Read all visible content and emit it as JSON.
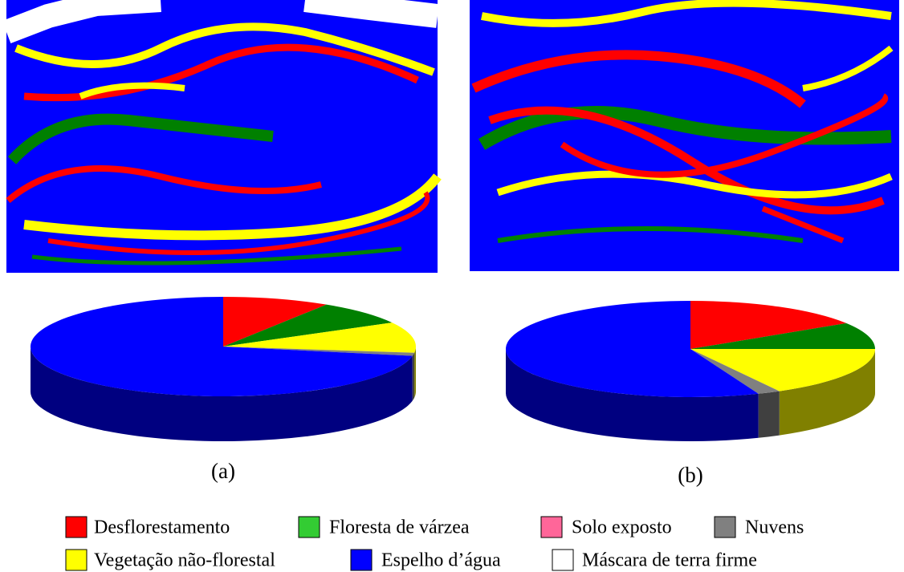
{
  "chart_data": [
    {
      "type": "pie",
      "caption": "(a)",
      "values": [
        9,
        8,
        10,
        1,
        72
      ],
      "colors": [
        "#ff0000",
        "#008000",
        "#ffff00",
        "#808080",
        "#0000ff"
      ]
    },
    {
      "type": "pie",
      "caption": "(b)",
      "values": [
        16,
        9,
        17,
        2,
        56
      ],
      "colors": [
        "#ff0000",
        "#008000",
        "#ffff00",
        "#808080",
        "#0000ff"
      ]
    }
  ],
  "legend": {
    "items": [
      {
        "label": "Desflorestamento",
        "color": "#ff0000"
      },
      {
        "label": "Floresta de várzea",
        "color": "#33cc33"
      },
      {
        "label": "Solo exposto",
        "color": "#ff6699"
      },
      {
        "label": "Nuvens",
        "color": "#808080"
      },
      {
        "label": "Vegetação não-florestal",
        "color": "#ffff00"
      },
      {
        "label": "Espelho d’água",
        "color": "#0000ff"
      },
      {
        "label": "Máscara de terra firme",
        "color": "#ffffff"
      }
    ]
  }
}
